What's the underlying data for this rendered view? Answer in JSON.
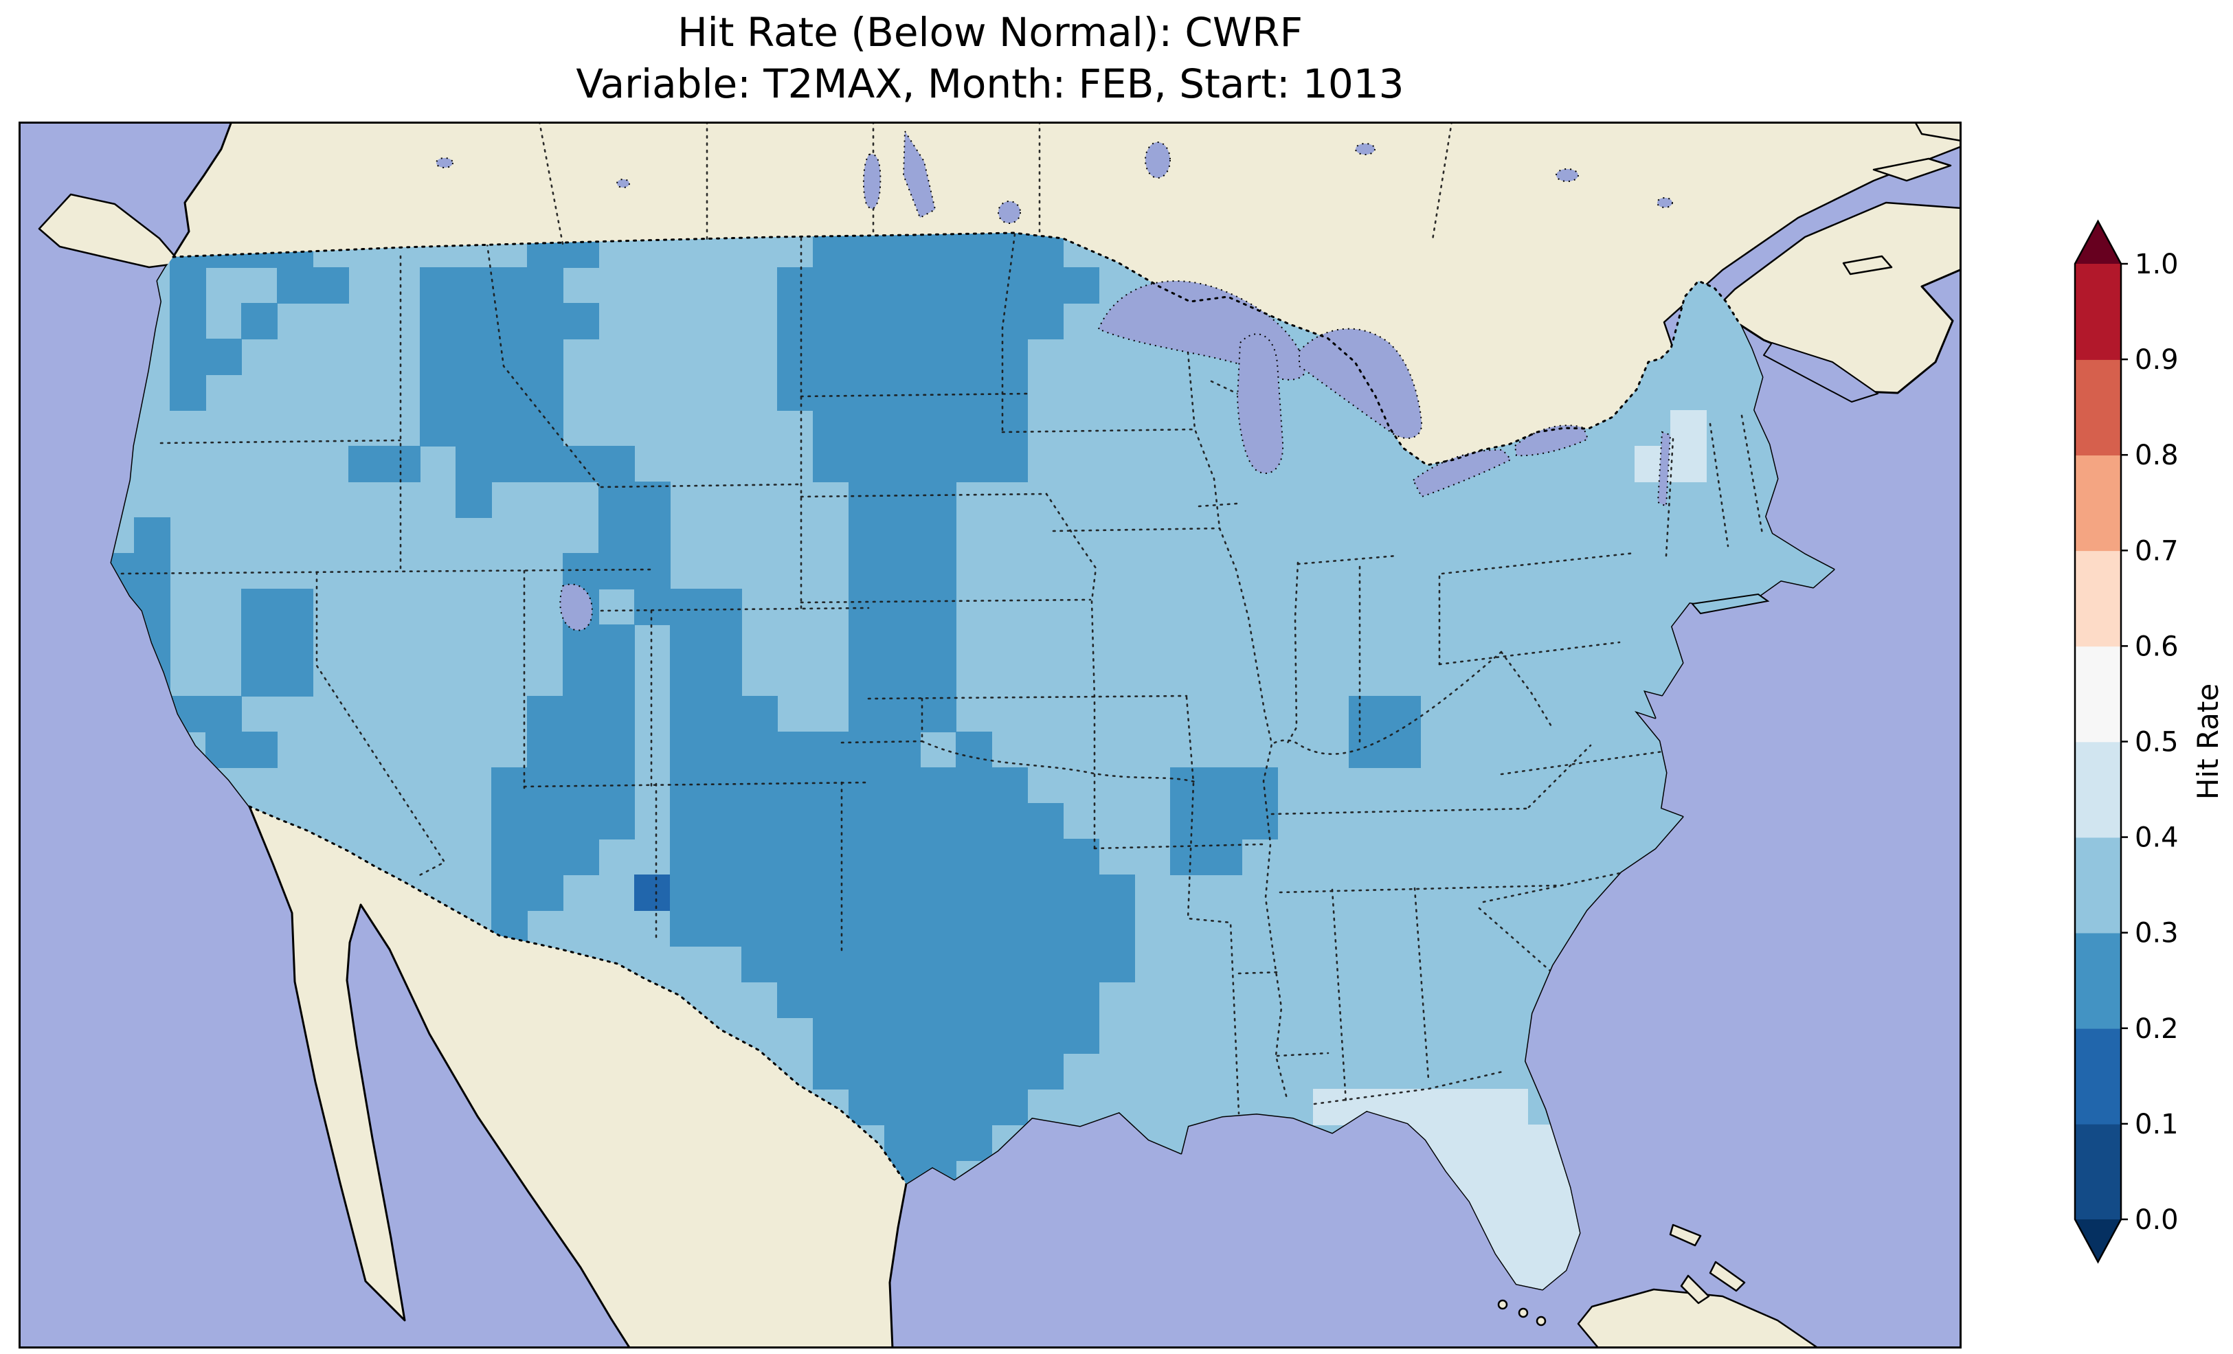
{
  "title": {
    "line1": "Hit Rate (Below Normal): CWRF",
    "line2": "Variable: T2MAX, Month: FEB, Start: 1013"
  },
  "colorbar": {
    "label": "Hit Rate",
    "orientation": "vertical-right",
    "ticks": [
      "0.0",
      "0.1",
      "0.2",
      "0.3",
      "0.4",
      "0.5",
      "0.6",
      "0.7",
      "0.8",
      "0.9",
      "1.0"
    ],
    "bin_colors": [
      "#134b87",
      "#2166ac",
      "#4393c3",
      "#92c5de",
      "#d1e5f0",
      "#f7f7f7",
      "#fddbc7",
      "#f4a582",
      "#d6604d",
      "#b2182b"
    ],
    "extend_low_color": "#053061",
    "extend_high_color": "#67001f",
    "outline_color": "#000000"
  },
  "map": {
    "ocean_color": "#a3ade0",
    "land_color": "#f0ecd7",
    "lake_color": "#9aa5d8",
    "coastline_color": "#000000",
    "border_line_style": "dotted",
    "region": "Contiguous United States with southern Canada, northern Mexico, Cuba and Bahamas visible"
  },
  "chart_data": {
    "type": "heatmap",
    "title": "Hit Rate (Below Normal): CWRF",
    "subtitle": "Variable: T2MAX, Month: FEB, Start: 1013",
    "model": "CWRF",
    "category": "Below Normal",
    "variable": "T2MAX",
    "month": "FEB",
    "start": "1013",
    "colorbar_label": "Hit Rate",
    "levels": [
      0.0,
      0.1,
      0.2,
      0.3,
      0.4,
      0.5,
      0.6,
      0.7,
      0.8,
      0.9,
      1.0
    ],
    "legend_position": "right",
    "value_key": {
      "1": 0.15,
      "2": 0.25,
      "3": 0.35,
      "4": 0.45,
      "5": 0.55
    },
    "base_value": 0.35,
    "palette": {
      "1": "#2166ac",
      "2": "#4393c3",
      "3": "#92c5de",
      "4": "#d1e5f0",
      "5": "#f7f7f7"
    },
    "summary": "Hit rates over CONUS are mostly 0.2-0.4: ~0.2-0.3 over the northern plains, Rockies, Southwest and Texas; ~0.3-0.4 over the East, Midwest and coasts; one 0.1-0.2 cell in west-central New Mexico; 0.4-0.6 over Florida.",
    "grid": {
      "cell": 52,
      "ox": 64,
      "oy": 160,
      "rows": [
        "...2222......22......2222222....................",
        "...2..22..2222......222222222...................",
        "...2.2....22222.....22222222....................",
        "...22.....2222......2222222.....................",
        "...2......2222......2222222.....................",
        "..........2222.......222222..................4..",
        "........22.22222.....222222.................44..",
        "...........2...22.....222.......................",
        "..2............22.....222.......................",
        ".22...........222.....222.......................",
        ".22..22.......2.222...222.......................",
        ".22..22.......22.22...222.......................",
        ".22..22.......22.22...222.......................",
        "...22........222.222..222...........22..........",
        "....22.......222.2222222.2..........22..........",
        "............2222.2222222222....222..............",
        "............2222.22222222222...222..............",
        "............222..222222222222..22...............",
        "............22..12222222222222..................",
        "............2....2222222222222..................",
        "...................22222222222..................",
        "....................222222222...................",
        ".....................22222222...................",
        ".....................2222222....................",
        "......................22222........444444.......",
        ".......................222..........544444......",
        ".......................22............444444.....",
        ".......................22.............44444.....",
        "......................................44444.....",
        ".......................................4444.....",
        ".......................................5454....."
      ]
    }
  }
}
